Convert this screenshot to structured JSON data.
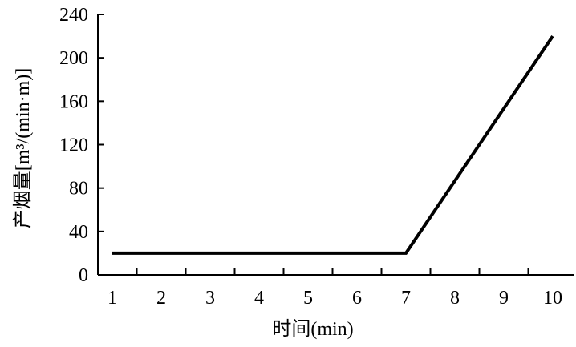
{
  "chart_data": {
    "type": "line",
    "title": "",
    "xlabel": "时间(min)",
    "ylabel": "产烟量[m³/(min·m)]",
    "x": [
      1,
      2,
      3,
      4,
      5,
      6,
      7,
      8,
      9,
      10
    ],
    "xlim": [
      1,
      10
    ],
    "ylim": [
      0,
      240
    ],
    "x_ticks": [
      1,
      2,
      3,
      4,
      5,
      6,
      7,
      8,
      9,
      10
    ],
    "x_tick_labels": [
      "1",
      "2",
      "3",
      "4",
      "5",
      "6",
      "7",
      "8",
      "9",
      "10"
    ],
    "y_ticks": [
      0,
      40,
      80,
      120,
      160,
      200,
      240
    ],
    "y_tick_labels": [
      "0",
      "40",
      "80",
      "120",
      "160",
      "200",
      "240"
    ],
    "series": [
      {
        "color": "#000000",
        "points": [
          [
            1,
            20
          ],
          [
            7,
            20
          ],
          [
            10,
            220
          ]
        ]
      }
    ],
    "grid": false,
    "legend": "none"
  }
}
